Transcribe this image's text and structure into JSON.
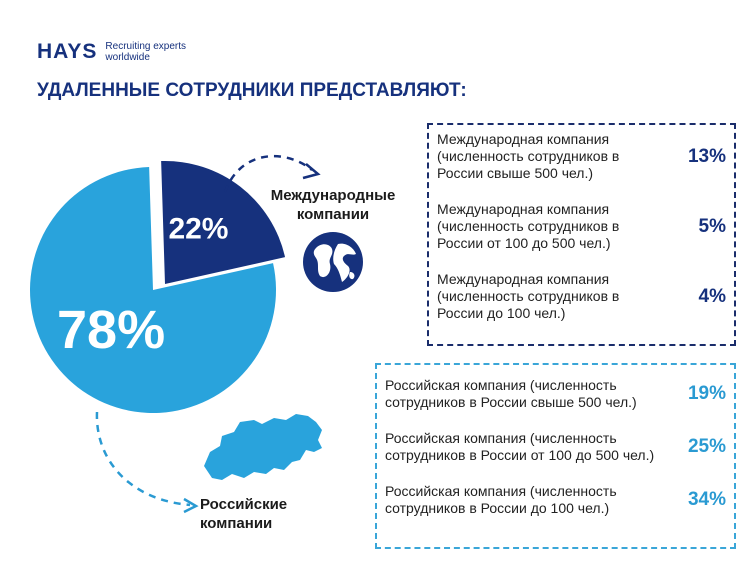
{
  "header": {
    "logo_word": "HAYS",
    "logo_tagline_1": "Recruiting experts",
    "logo_tagline_2": "worldwide",
    "title": "УДАЛЕННЫЕ СОТРУДНИКИ ПРЕДСТАВЛЯЮТ:"
  },
  "colors": {
    "international": "#16317d",
    "russian": "#2a9ad2",
    "pie_russian": "#29a3dc"
  },
  "icons": [
    "globe-icon",
    "russia-map-icon",
    "dashed-arrow-icon"
  ],
  "chart_data": [
    {
      "type": "pie",
      "categories": [
        "Международные компании",
        "Российские компании"
      ],
      "values": [
        22,
        78
      ],
      "data_labels": [
        "22%",
        "78%"
      ]
    },
    {
      "type": "table",
      "group": "Международные компании",
      "categories": [
        "Международная компания (численность сотрудников в России свыше 500 чел.)",
        "Международная компания (численность сотрудников в России от 100 до 500 чел.)",
        "Международная компания (численность сотрудников в России до 100 чел.)"
      ],
      "values": [
        13,
        5,
        4
      ],
      "data_labels": [
        "13%",
        "5%",
        "4%"
      ]
    },
    {
      "type": "table",
      "group": "Российские компании",
      "categories": [
        "Российская компания (численность сотрудников в России свыше 500 чел.)",
        "Российская компания (численность сотрудников в России от 100 до 500 чел.)",
        "Российская компания (численность сотрудников в России до 100 чел.)"
      ],
      "values": [
        19,
        25,
        34
      ],
      "data_labels": [
        "19%",
        "25%",
        "34%"
      ]
    }
  ],
  "labels": {
    "intl_line1": "Международные",
    "intl_line2": "компании",
    "ru_line1": "Российские",
    "ru_line2": "компании"
  }
}
